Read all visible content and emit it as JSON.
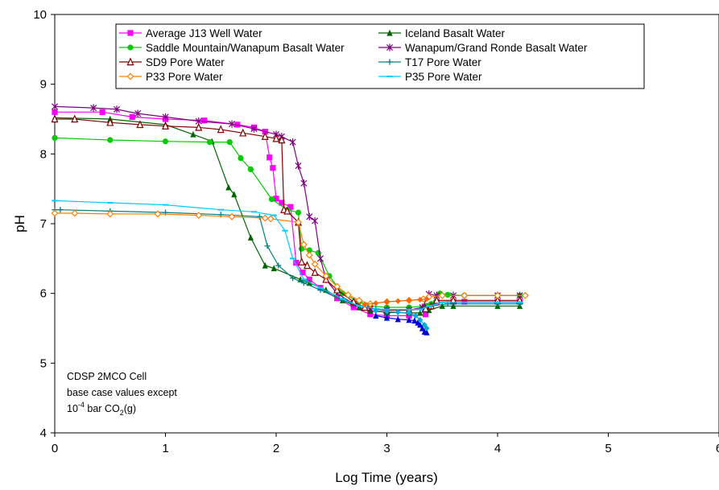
{
  "chart_data": {
    "type": "line",
    "xlabel": "Log Time (years)",
    "ylabel": "pH",
    "xlim": [
      0,
      6
    ],
    "ylim": [
      4,
      10
    ],
    "x_ticks": [
      "0",
      "1",
      "2",
      "3",
      "4",
      "5",
      "6"
    ],
    "y_ticks": [
      "4",
      "5",
      "6",
      "7",
      "8",
      "9",
      "10"
    ],
    "grid": false,
    "legend_position": "top",
    "annotation": {
      "line1": "CDSP 2MCO Cell",
      "line2": "base case values except",
      "line3_base": "10",
      "line3_exp": "-4",
      "line3_mid": " bar CO",
      "line3_sub": "2",
      "line3_end": "(g)"
    },
    "series": [
      {
        "name": "Average J13 Well Water",
        "color": "#ff00ff",
        "marker": "square",
        "points": [
          [
            0.0,
            8.6
          ],
          [
            0.43,
            8.6
          ],
          [
            0.7,
            8.53
          ],
          [
            1.0,
            8.5
          ],
          [
            1.35,
            8.48
          ],
          [
            1.65,
            8.42
          ],
          [
            1.8,
            8.38
          ],
          [
            1.9,
            8.32
          ],
          [
            1.94,
            7.95
          ],
          [
            1.97,
            7.8
          ],
          [
            2.0,
            7.36
          ],
          [
            2.05,
            7.3
          ],
          [
            2.13,
            7.24
          ],
          [
            2.18,
            6.44
          ],
          [
            2.24,
            6.3
          ],
          [
            2.3,
            6.2
          ],
          [
            2.4,
            6.08
          ],
          [
            2.55,
            5.93
          ],
          [
            2.7,
            5.8
          ],
          [
            2.85,
            5.7
          ],
          [
            3.0,
            5.68
          ],
          [
            3.2,
            5.68
          ],
          [
            3.35,
            5.7
          ],
          [
            3.38,
            5.82
          ],
          [
            3.45,
            5.88
          ],
          [
            3.6,
            5.88
          ],
          [
            3.7,
            5.88
          ],
          [
            4.0,
            5.88
          ],
          [
            4.2,
            5.88
          ]
        ]
      },
      {
        "name": "Iceland Basalt Water",
        "color": "#006400",
        "marker": "triangle",
        "points": [
          [
            0.0,
            8.52
          ],
          [
            0.5,
            8.5
          ],
          [
            1.0,
            8.42
          ],
          [
            1.25,
            8.28
          ],
          [
            1.42,
            8.18
          ],
          [
            1.57,
            7.52
          ],
          [
            1.62,
            7.42
          ],
          [
            1.77,
            6.8
          ],
          [
            1.9,
            6.4
          ],
          [
            1.98,
            6.36
          ],
          [
            2.22,
            6.2
          ],
          [
            2.3,
            6.15
          ],
          [
            2.45,
            6.05
          ],
          [
            2.6,
            5.9
          ],
          [
            2.75,
            5.8
          ],
          [
            2.85,
            5.75
          ],
          [
            3.0,
            5.73
          ],
          [
            3.2,
            5.72
          ],
          [
            3.3,
            5.72
          ],
          [
            3.38,
            5.76
          ],
          [
            3.5,
            5.82
          ],
          [
            3.6,
            5.82
          ],
          [
            4.0,
            5.82
          ],
          [
            4.2,
            5.82
          ]
        ]
      },
      {
        "name": "Saddle Mountain/Wanapum Basalt Water",
        "color": "#00cc00",
        "marker": "circle",
        "points": [
          [
            0.0,
            8.23
          ],
          [
            0.5,
            8.2
          ],
          [
            1.0,
            8.18
          ],
          [
            1.4,
            8.17
          ],
          [
            1.58,
            8.17
          ],
          [
            1.68,
            7.94
          ],
          [
            1.77,
            7.78
          ],
          [
            1.96,
            7.35
          ],
          [
            2.1,
            7.2
          ],
          [
            2.2,
            7.16
          ],
          [
            2.23,
            6.64
          ],
          [
            2.3,
            6.62
          ],
          [
            2.38,
            6.58
          ],
          [
            2.48,
            6.25
          ],
          [
            2.6,
            6.0
          ],
          [
            2.75,
            5.88
          ],
          [
            2.85,
            5.82
          ],
          [
            3.0,
            5.8
          ],
          [
            3.2,
            5.8
          ],
          [
            3.35,
            5.82
          ],
          [
            3.4,
            5.85
          ],
          [
            3.48,
            6.0
          ],
          [
            3.55,
            5.98
          ],
          [
            3.7,
            5.97
          ],
          [
            4.0,
            5.97
          ],
          [
            4.2,
            5.97
          ]
        ]
      },
      {
        "name": "Wanapum/Grand Ronde Basalt Water",
        "color": "#800080",
        "marker": "star",
        "points": [
          [
            0.0,
            8.68
          ],
          [
            0.35,
            8.66
          ],
          [
            0.56,
            8.64
          ],
          [
            0.75,
            8.58
          ],
          [
            1.0,
            8.53
          ],
          [
            1.3,
            8.47
          ],
          [
            1.6,
            8.43
          ],
          [
            1.8,
            8.36
          ],
          [
            2.0,
            8.28
          ],
          [
            2.05,
            8.25
          ],
          [
            2.15,
            8.17
          ],
          [
            2.2,
            7.83
          ],
          [
            2.25,
            7.58
          ],
          [
            2.3,
            7.1
          ],
          [
            2.35,
            7.04
          ],
          [
            2.4,
            6.5
          ],
          [
            2.45,
            6.2
          ],
          [
            2.55,
            6.0
          ],
          [
            2.7,
            5.85
          ],
          [
            2.85,
            5.78
          ],
          [
            3.0,
            5.76
          ],
          [
            3.2,
            5.76
          ],
          [
            3.32,
            5.8
          ],
          [
            3.38,
            5.99
          ],
          [
            3.45,
            5.97
          ],
          [
            3.6,
            5.97
          ],
          [
            4.0,
            5.97
          ],
          [
            4.2,
            5.97
          ]
        ]
      },
      {
        "name": "SD9 Pore Water",
        "color": "#800000",
        "marker": "triangle-open",
        "points": [
          [
            0.0,
            8.5
          ],
          [
            0.18,
            8.5
          ],
          [
            0.5,
            8.45
          ],
          [
            0.77,
            8.42
          ],
          [
            1.0,
            8.4
          ],
          [
            1.3,
            8.38
          ],
          [
            1.5,
            8.35
          ],
          [
            1.7,
            8.3
          ],
          [
            1.9,
            8.25
          ],
          [
            2.0,
            8.22
          ],
          [
            2.05,
            8.2
          ],
          [
            2.07,
            7.2
          ],
          [
            2.1,
            7.18
          ],
          [
            2.2,
            7.02
          ],
          [
            2.23,
            6.45
          ],
          [
            2.28,
            6.4
          ],
          [
            2.35,
            6.3
          ],
          [
            2.45,
            6.2
          ],
          [
            2.55,
            6.05
          ],
          [
            2.7,
            5.88
          ],
          [
            2.8,
            5.8
          ],
          [
            3.0,
            5.76
          ],
          [
            3.2,
            5.76
          ],
          [
            3.35,
            5.78
          ],
          [
            3.4,
            5.82
          ],
          [
            3.45,
            5.9
          ],
          [
            3.6,
            5.9
          ],
          [
            4.0,
            5.9
          ],
          [
            4.2,
            5.9
          ]
        ]
      },
      {
        "name": "T17 Pore Water",
        "color": "#008080",
        "marker": "plus",
        "points": [
          [
            0.0,
            7.2
          ],
          [
            0.05,
            7.2
          ],
          [
            0.5,
            7.18
          ],
          [
            1.0,
            7.16
          ],
          [
            1.5,
            7.13
          ],
          [
            1.85,
            7.1
          ],
          [
            1.92,
            6.68
          ],
          [
            2.02,
            6.4
          ],
          [
            2.15,
            6.22
          ],
          [
            2.25,
            6.15
          ],
          [
            2.4,
            6.05
          ],
          [
            2.6,
            5.9
          ],
          [
            2.75,
            5.82
          ],
          [
            2.9,
            5.78
          ],
          [
            3.0,
            5.77
          ],
          [
            3.2,
            5.77
          ],
          [
            3.3,
            5.77
          ],
          [
            3.4,
            5.82
          ],
          [
            3.55,
            5.85
          ],
          [
            4.0,
            5.85
          ],
          [
            4.2,
            5.85
          ]
        ]
      },
      {
        "name": "P33 Pore Water",
        "color": "#ff8000",
        "marker": "diamond-open",
        "points": [
          [
            0.0,
            7.15
          ],
          [
            0.18,
            7.15
          ],
          [
            0.5,
            7.14
          ],
          [
            0.93,
            7.14
          ],
          [
            1.3,
            7.12
          ],
          [
            1.6,
            7.1
          ],
          [
            1.9,
            7.08
          ],
          [
            1.95,
            7.07
          ],
          [
            2.2,
            7.02
          ],
          [
            2.25,
            6.7
          ],
          [
            2.3,
            6.55
          ],
          [
            2.35,
            6.42
          ],
          [
            2.45,
            6.25
          ],
          [
            2.55,
            6.1
          ],
          [
            2.65,
            5.98
          ],
          [
            2.75,
            5.9
          ],
          [
            2.85,
            5.85
          ],
          [
            3.0,
            5.88
          ],
          [
            3.2,
            5.9
          ],
          [
            3.33,
            5.92
          ],
          [
            3.38,
            5.95
          ],
          [
            3.5,
            5.97
          ],
          [
            3.7,
            5.97
          ],
          [
            4.0,
            5.97
          ],
          [
            4.25,
            5.97
          ]
        ]
      },
      {
        "name": "P35 Pore Water",
        "color": "#00ccff",
        "marker": "dash",
        "points": [
          [
            0.0,
            7.33
          ],
          [
            0.5,
            7.3
          ],
          [
            1.0,
            7.27
          ],
          [
            1.5,
            7.2
          ],
          [
            1.8,
            7.17
          ],
          [
            1.98,
            7.12
          ],
          [
            2.08,
            6.9
          ],
          [
            2.15,
            6.5
          ],
          [
            2.25,
            6.2
          ],
          [
            2.4,
            6.08
          ],
          [
            2.6,
            5.92
          ],
          [
            2.75,
            5.82
          ],
          [
            2.9,
            5.78
          ],
          [
            3.0,
            5.77
          ],
          [
            3.2,
            5.77
          ],
          [
            3.3,
            5.77
          ],
          [
            3.38,
            5.82
          ],
          [
            3.5,
            5.87
          ],
          [
            4.0,
            5.87
          ],
          [
            4.2,
            5.87
          ]
        ]
      },
      {
        "name": "",
        "color": "#0000cc",
        "marker": "triangle",
        "points": [
          [
            2.9,
            5.68
          ],
          [
            3.0,
            5.65
          ],
          [
            3.1,
            5.63
          ],
          [
            3.2,
            5.62
          ],
          [
            3.25,
            5.61
          ],
          [
            3.28,
            5.58
          ],
          [
            3.3,
            5.55
          ],
          [
            3.32,
            5.5
          ],
          [
            3.34,
            5.45
          ],
          [
            3.36,
            5.44
          ]
        ]
      },
      {
        "name": "",
        "color": "#00aadd",
        "marker": "diamond",
        "points": [
          [
            2.9,
            5.75
          ],
          [
            3.0,
            5.74
          ],
          [
            3.1,
            5.73
          ],
          [
            3.2,
            5.72
          ],
          [
            3.26,
            5.68
          ],
          [
            3.3,
            5.62
          ],
          [
            3.34,
            5.55
          ],
          [
            3.36,
            5.5
          ]
        ]
      },
      {
        "name": "",
        "color": "#ff6600",
        "marker": "diamond",
        "points": [
          [
            2.8,
            5.84
          ],
          [
            2.9,
            5.86
          ],
          [
            3.0,
            5.88
          ],
          [
            3.1,
            5.89
          ],
          [
            3.2,
            5.9
          ],
          [
            3.3,
            5.91
          ],
          [
            3.36,
            5.92
          ]
        ]
      }
    ]
  }
}
